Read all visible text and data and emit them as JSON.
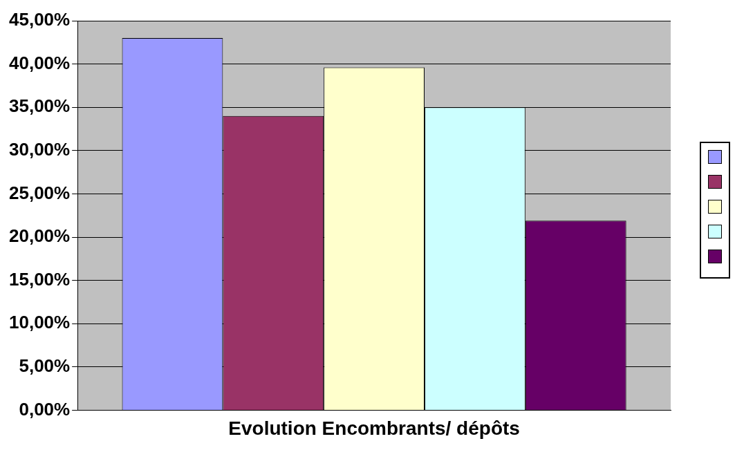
{
  "chart_data": {
    "type": "bar",
    "categories": [
      "Evolution Encombrants/ dépôts"
    ],
    "series": [
      {
        "color": "#9999ff",
        "values": [
          43.0
        ]
      },
      {
        "color": "#993366",
        "values": [
          34.0
        ]
      },
      {
        "color": "#ffffcc",
        "values": [
          39.6
        ]
      },
      {
        "color": "#ccffff",
        "values": [
          35.0
        ]
      },
      {
        "color": "#660066",
        "values": [
          21.9
        ]
      }
    ],
    "ylim": [
      0,
      45
    ],
    "yticks": [
      {
        "value": 0,
        "label": "0,00%"
      },
      {
        "value": 5,
        "label": "5,00%"
      },
      {
        "value": 10,
        "label": "10,00%"
      },
      {
        "value": 15,
        "label": "15,00%"
      },
      {
        "value": 20,
        "label": "20,00%"
      },
      {
        "value": 25,
        "label": "25,00%"
      },
      {
        "value": 30,
        "label": "30,00%"
      },
      {
        "value": 35,
        "label": "35,00%"
      },
      {
        "value": 40,
        "label": "40,00%"
      },
      {
        "value": 45,
        "label": "45,00%"
      }
    ],
    "grid": "y"
  }
}
